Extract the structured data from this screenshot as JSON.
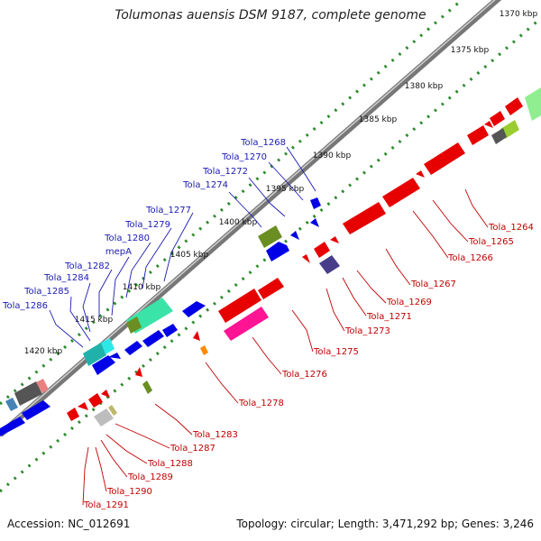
{
  "title": "Tolumonas auensis DSM 9187, complete genome",
  "footer": {
    "accession": "Accession: NC_012691",
    "summary": "Topology: circular; Length: 3,471,292 bp; Genes: 3,246"
  },
  "colors": {
    "forward_strand": "#0000e6",
    "reverse_strand": "#e60000",
    "forward_label": "#1a1ab4",
    "reverse_label": "#c00000",
    "scale_dots": "#2e8b2e",
    "backbone": "#777777"
  },
  "scale_ticks": [
    "1370 kbp",
    "1375 kbp",
    "1380 kbp",
    "1385 kbp",
    "1390 kbp",
    "1395 kbp",
    "1400 kbp",
    "1405 kbp",
    "1410 kbp",
    "1415 kbp",
    "1420 kbp"
  ],
  "forward_genes": [
    "Tola_1268",
    "Tola_1270",
    "Tola_1272",
    "Tola_1274",
    "Tola_1277",
    "Tola_1279",
    "Tola_1280",
    "mepA",
    "Tola_1282",
    "Tola_1284",
    "Tola_1285",
    "Tola_1286"
  ],
  "reverse_genes": [
    "Tola_1264",
    "Tola_1265",
    "Tola_1266",
    "Tola_1267",
    "Tola_1269",
    "Tola_1271",
    "Tola_1273",
    "Tola_1275",
    "Tola_1276",
    "Tola_1278",
    "Tola_1283",
    "Tola_1287",
    "Tola_1288",
    "Tola_1289",
    "Tola_1290",
    "Tola_1291"
  ]
}
